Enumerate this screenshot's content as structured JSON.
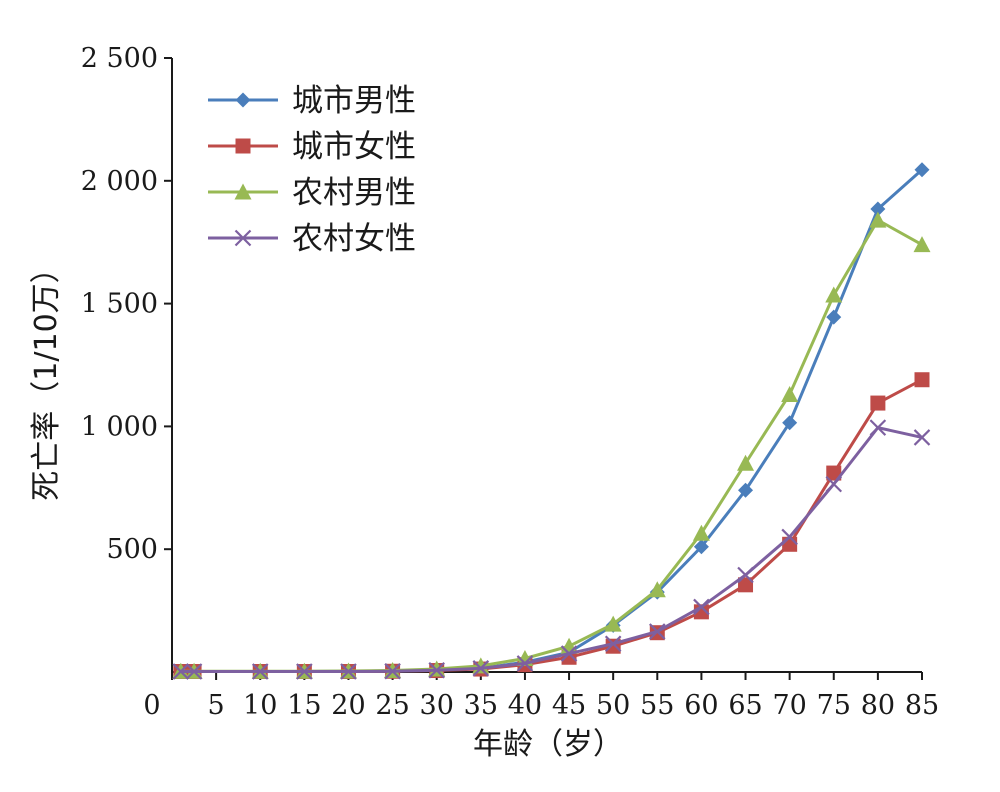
{
  "chart_data": {
    "type": "line",
    "title": "",
    "xlabel": "年龄（岁）",
    "ylabel": "死亡率（1/10万）",
    "x_ticks": [
      "0",
      "5",
      "10",
      "15",
      "20",
      "25",
      "30",
      "35",
      "40",
      "45",
      "50",
      "55",
      "60",
      "65",
      "70",
      "75",
      "80",
      "85"
    ],
    "y_ticks": [
      "500",
      "1 000",
      "1 500",
      "2 000",
      "2 500"
    ],
    "xlim": [
      0,
      85
    ],
    "ylim": [
      0,
      2500
    ],
    "x": [
      1,
      2.5,
      10,
      15,
      20,
      25,
      30,
      35,
      40,
      45,
      50,
      55,
      60,
      65,
      70,
      75,
      80,
      85
    ],
    "grid": false,
    "legend_position": "top-left",
    "series": [
      {
        "name": "城市男性",
        "color": "#4a7ebb",
        "marker": "diamond",
        "values": [
          2,
          2,
          2,
          2,
          3,
          5,
          8,
          15,
          40,
          80,
          190,
          325,
          510,
          740,
          1015,
          1445,
          1885,
          2045
        ]
      },
      {
        "name": "城市女性",
        "color": "#be4b48",
        "marker": "square",
        "values": [
          2,
          2,
          2,
          2,
          2,
          3,
          6,
          12,
          30,
          60,
          105,
          160,
          245,
          355,
          520,
          810,
          1095,
          1190
        ]
      },
      {
        "name": "农村男性",
        "color": "#98b954",
        "marker": "triangle",
        "values": [
          3,
          3,
          3,
          3,
          4,
          6,
          12,
          25,
          55,
          105,
          195,
          335,
          565,
          850,
          1130,
          1535,
          1840,
          1740
        ]
      },
      {
        "name": "农村女性",
        "color": "#7d60a0",
        "marker": "x",
        "values": [
          2,
          2,
          2,
          2,
          2,
          3,
          7,
          15,
          35,
          75,
          115,
          165,
          265,
          395,
          550,
          765,
          995,
          955
        ]
      }
    ]
  }
}
